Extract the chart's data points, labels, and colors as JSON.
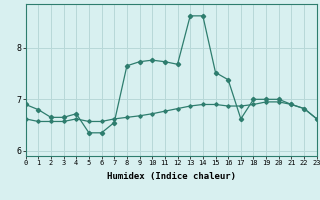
{
  "xlabel": "Humidex (Indice chaleur)",
  "x": [
    0,
    1,
    2,
    3,
    4,
    5,
    6,
    7,
    8,
    9,
    10,
    11,
    12,
    13,
    14,
    15,
    16,
    17,
    18,
    19,
    20,
    21,
    22,
    23
  ],
  "line1": [
    6.9,
    6.8,
    6.65,
    6.65,
    6.72,
    6.35,
    6.35,
    6.55,
    7.65,
    7.73,
    7.76,
    7.73,
    7.68,
    8.62,
    8.62,
    7.52,
    7.38,
    6.62,
    7.0,
    7.0,
    7.0,
    6.9,
    6.82,
    6.62
  ],
  "line2": [
    6.62,
    6.57,
    6.57,
    6.57,
    6.62,
    6.57,
    6.57,
    6.62,
    6.65,
    6.68,
    6.72,
    6.77,
    6.82,
    6.87,
    6.9,
    6.9,
    6.87,
    6.87,
    6.9,
    6.95,
    6.95,
    6.9,
    6.82,
    6.62
  ],
  "line_color": "#2e7d6e",
  "bg_color": "#d8f0f0",
  "grid_color": "#b8d8d8",
  "ylim": [
    5.9,
    8.85
  ],
  "yticks": [
    6,
    7,
    8
  ],
  "xlim": [
    0,
    23
  ],
  "spine_color": "#2e7d6e"
}
